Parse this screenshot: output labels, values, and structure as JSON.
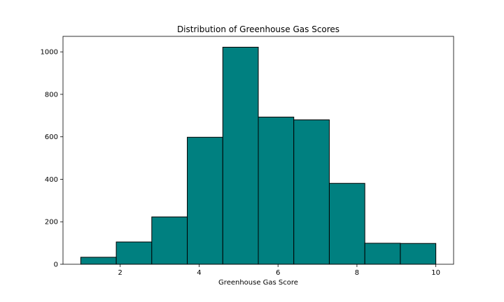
{
  "chart_data": {
    "type": "bar",
    "title": "Distribution of Greenhouse Gas Scores",
    "xlabel": "Greenhouse Gas Score",
    "ylabel": "",
    "bin_edges": [
      1.0,
      1.9,
      2.8,
      3.7,
      4.6,
      5.5,
      6.4,
      7.3,
      8.2,
      9.1,
      10.0
    ],
    "values": [
      33,
      105,
      223,
      598,
      1022,
      693,
      680,
      381,
      99,
      98
    ],
    "xlim": [
      0.55,
      10.45
    ],
    "ylim": [
      0,
      1073
    ],
    "xticks": [
      2,
      4,
      6,
      8,
      10
    ],
    "yticks": [
      0,
      200,
      400,
      600,
      800,
      1000
    ],
    "bar_color": "#008080",
    "edge_color": "#000000",
    "grid": false,
    "legend": "none"
  }
}
